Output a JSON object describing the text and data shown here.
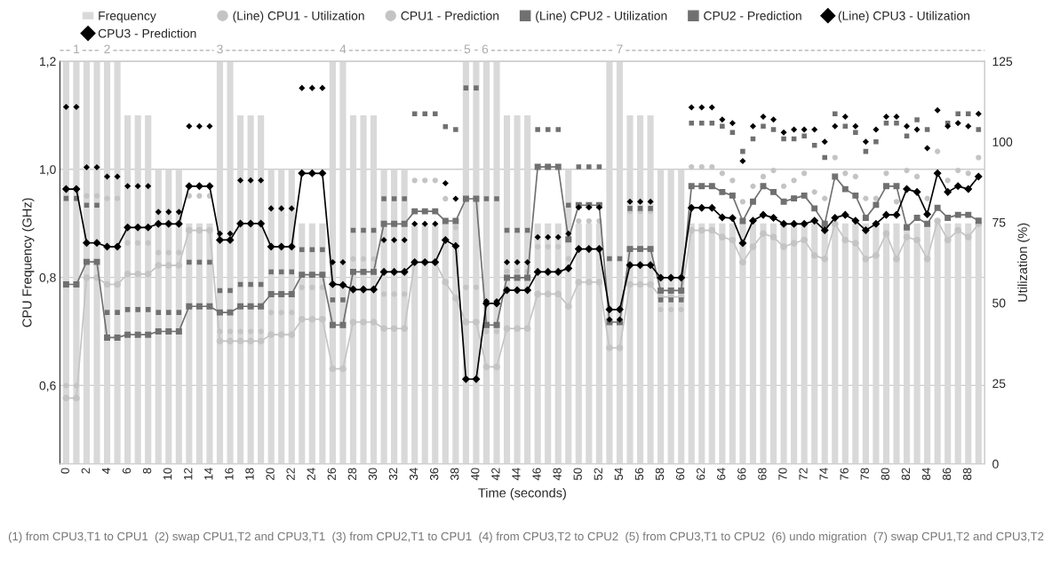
{
  "chart_data": {
    "type": "bar",
    "xlabel": "Time (seconds)",
    "ylabel": "CPU Frequency (GHz)",
    "y2label": "Utilization (%)",
    "x": [
      0,
      1,
      2,
      3,
      4,
      5,
      6,
      7,
      8,
      9,
      10,
      11,
      12,
      13,
      14,
      15,
      16,
      17,
      18,
      19,
      20,
      21,
      22,
      23,
      24,
      25,
      26,
      27,
      28,
      29,
      30,
      31,
      32,
      33,
      34,
      35,
      36,
      37,
      38,
      39,
      40,
      41,
      42,
      43,
      44,
      45,
      46,
      47,
      48,
      49,
      50,
      51,
      52,
      53,
      54,
      55,
      56,
      57,
      58,
      59,
      60,
      61,
      62,
      63,
      64,
      65,
      66,
      67,
      68,
      69,
      70,
      71,
      72,
      73,
      74,
      75,
      76,
      77,
      78,
      79,
      80,
      81,
      82,
      83,
      84,
      85,
      86,
      87,
      88,
      89
    ],
    "xlim": [
      -0.6,
      89.6
    ],
    "xticks": [
      0,
      2,
      4,
      6,
      8,
      10,
      12,
      14,
      16,
      18,
      20,
      22,
      24,
      26,
      28,
      30,
      32,
      34,
      36,
      38,
      40,
      42,
      44,
      46,
      48,
      50,
      52,
      54,
      56,
      58,
      60,
      62,
      64,
      66,
      68,
      70,
      72,
      74,
      76,
      78,
      80,
      82,
      84,
      86,
      88
    ],
    "ylim": [
      0.455,
      1.2
    ],
    "yticks": [
      {
        "value": 0.6,
        "label": "0,6"
      },
      {
        "value": 0.8,
        "label": "0,8"
      },
      {
        "value": 1.0,
        "label": "1,0"
      },
      {
        "value": 1.2,
        "label": "1,2"
      }
    ],
    "y2lim": [
      0,
      125
    ],
    "y2ticks": [
      0,
      25,
      50,
      75,
      100,
      125
    ],
    "grid": "y",
    "legend": "top",
    "series": [
      {
        "name": "Frequency",
        "axis": "y",
        "color": "#d9d9d9",
        "values": [
          1.2,
          1.2,
          1.2,
          1.2,
          1.2,
          1.2,
          1.1,
          1.1,
          1.1,
          1.0,
          1.0,
          1.0,
          0.9,
          0.9,
          0.9,
          1.2,
          1.2,
          1.1,
          1.1,
          1.1,
          1.0,
          1.0,
          1.0,
          0.9,
          0.9,
          0.9,
          1.2,
          1.2,
          1.1,
          1.1,
          1.1,
          1.0,
          1.0,
          1.0,
          0.9,
          0.9,
          0.9,
          0.9,
          0.9,
          1.2,
          1.2,
          1.2,
          1.2,
          1.1,
          1.1,
          1.1,
          0.9,
          0.9,
          0.9,
          1.0,
          0.9,
          0.9,
          0.9,
          1.2,
          1.2,
          1.1,
          1.1,
          1.1,
          1.0,
          1.0,
          1.0,
          0.9,
          0.9,
          0.9,
          0.9,
          0.9,
          0.9,
          0.9,
          0.9,
          0.9,
          0.9,
          0.9,
          0.9,
          0.9,
          0.9,
          0.9,
          0.9,
          0.9,
          0.9,
          0.9,
          0.9,
          0.9,
          0.9,
          0.9,
          0.9,
          0.9,
          0.9,
          0.9,
          0.9,
          0.9
        ]
      },
      {
        "name": "(Line) CPU1 - Utilization",
        "type": "line",
        "axis": "y2",
        "color": "#c4c4c4",
        "marker": "circle",
        "values": [
          20.4,
          20.4,
          57.8,
          57.8,
          55.7,
          55.7,
          58.9,
          58.9,
          58.9,
          61.6,
          61.6,
          61.6,
          72.5,
          72.5,
          72.5,
          38.1,
          38.1,
          38.1,
          38.1,
          38.1,
          40.1,
          40.1,
          40.1,
          44.9,
          44.9,
          44.9,
          29.5,
          29.5,
          44.0,
          44.0,
          44.0,
          42.0,
          42.0,
          42.0,
          62.6,
          62.6,
          62.6,
          56.4,
          51.4,
          44.0,
          44.0,
          30.1,
          30.1,
          42.0,
          42.0,
          42.0,
          52.7,
          52.7,
          52.7,
          48.9,
          56.4,
          56.4,
          56.4,
          36.0,
          36.0,
          55.7,
          55.7,
          55.7,
          51.8,
          51.8,
          51.8,
          72.5,
          72.5,
          72.5,
          70.4,
          69.5,
          62.6,
          67.4,
          71.5,
          70.4,
          67.4,
          68.5,
          69.5,
          64.7,
          63.6,
          74.5,
          69.5,
          68.5,
          63.6,
          64.7,
          71.5,
          63.6,
          70.4,
          69.5,
          63.6,
          75.4,
          69.5,
          72.5,
          70.4,
          74.5
        ]
      },
      {
        "name": "CPU1 - Prediction",
        "type": "scatter",
        "axis": "y2",
        "color": "#c4c4c4",
        "marker": "circle",
        "values": [
          24.3,
          24.3,
          83.2,
          83.2,
          82.4,
          82.4,
          68.6,
          68.6,
          68.6,
          65.6,
          65.6,
          65.6,
          83.2,
          83.2,
          83.2,
          41.1,
          41.1,
          41.1,
          41.1,
          41.1,
          47.0,
          47.0,
          47.0,
          54.8,
          54.8,
          54.8,
          null,
          null,
          63.6,
          63.6,
          63.6,
          52.7,
          52.7,
          52.7,
          88.0,
          88.0,
          88.0,
          82.3,
          73.4,
          54.8,
          54.8,
          41.1,
          41.1,
          59.8,
          59.8,
          59.8,
          67.4,
          67.4,
          67.4,
          63.7,
          75.4,
          75.4,
          75.4,
          null,
          null,
          78.4,
          78.4,
          78.4,
          47.9,
          47.9,
          47.9,
          92.2,
          92.2,
          92.2,
          90.2,
          88.0,
          81.4,
          86.2,
          89.2,
          91.1,
          86.2,
          88.0,
          90.2,
          84.4,
          82.4,
          95.1,
          90.2,
          89.2,
          82.4,
          82.4,
          90.2,
          81.4,
          91.1,
          89.2,
          82.4,
          97.0,
          88.0,
          91.1,
          90.2,
          95.1
        ]
      },
      {
        "name": "(Line) CPU2 - Utilization",
        "type": "line",
        "axis": "y2",
        "color": "#707070",
        "marker": "square",
        "values": [
          55.7,
          55.7,
          62.7,
          62.7,
          39.2,
          39.2,
          40.1,
          40.1,
          40.1,
          41.1,
          41.1,
          41.1,
          48.9,
          48.9,
          48.9,
          47.0,
          47.0,
          48.9,
          48.9,
          48.9,
          52.7,
          52.7,
          52.7,
          58.7,
          58.7,
          58.7,
          43.1,
          43.1,
          59.6,
          59.6,
          59.6,
          74.5,
          74.5,
          74.5,
          78.4,
          78.4,
          78.4,
          75.4,
          75.4,
          82.3,
          82.3,
          43.1,
          43.1,
          57.8,
          57.8,
          57.8,
          92.2,
          92.2,
          92.2,
          69.7,
          80.3,
          80.3,
          80.3,
          44.0,
          44.0,
          66.7,
          66.7,
          66.7,
          53.8,
          53.8,
          53.8,
          86.2,
          86.2,
          86.2,
          84.4,
          83.3,
          75.4,
          81.4,
          86.2,
          84.4,
          81.4,
          82.4,
          83.3,
          79.3,
          74.5,
          89.2,
          85.3,
          83.3,
          76.4,
          80.4,
          86.2,
          86.2,
          73.4,
          76.4,
          74.5,
          79.5,
          76.4,
          77.3,
          77.3,
          75.5
        ]
      },
      {
        "name": "CPU2 - Prediction",
        "type": "scatter",
        "axis": "y2",
        "color": "#707070",
        "marker": "square",
        "values": [
          82.4,
          82.4,
          80.3,
          80.3,
          47.0,
          47.0,
          47.9,
          47.9,
          47.9,
          47.0,
          47.0,
          47.0,
          62.6,
          62.6,
          62.6,
          53.8,
          53.8,
          55.7,
          55.7,
          55.7,
          59.6,
          59.6,
          59.6,
          66.5,
          66.5,
          66.5,
          50.9,
          50.9,
          72.5,
          72.5,
          72.5,
          82.3,
          82.3,
          82.3,
          108.7,
          108.7,
          108.7,
          104.7,
          103.8,
          116.7,
          116.7,
          82.3,
          82.3,
          72.5,
          72.5,
          72.5,
          103.8,
          103.8,
          103.8,
          80.3,
          92.2,
          92.2,
          92.2,
          63.7,
          63.7,
          79.3,
          79.3,
          79.3,
          50.9,
          50.9,
          50.9,
          105.8,
          105.8,
          105.8,
          104.8,
          102.9,
          97.0,
          100.9,
          104.8,
          103.8,
          100.9,
          100.9,
          101.8,
          98.9,
          95.1,
          108.7,
          104.8,
          102.9,
          97.0,
          100.0,
          105.8,
          105.8,
          101.8,
          106.8,
          103.8,
          null,
          105.8,
          108.7,
          108.7,
          103.8
        ]
      },
      {
        "name": "(Line) CPU3 - Utilization",
        "type": "line",
        "axis": "y2",
        "color": "#000000",
        "marker": "diamond",
        "values": [
          85.3,
          85.3,
          68.6,
          68.6,
          67.4,
          67.4,
          73.4,
          73.4,
          73.4,
          74.5,
          74.5,
          74.5,
          86.2,
          86.2,
          86.2,
          69.5,
          69.5,
          74.6,
          74.6,
          74.6,
          67.4,
          67.4,
          67.4,
          90.2,
          90.2,
          90.2,
          55.8,
          55.5,
          54.1,
          54.1,
          54.1,
          59.6,
          59.6,
          59.6,
          62.6,
          62.6,
          62.6,
          69.5,
          67.6,
          26.3,
          26.3,
          49.8,
          49.8,
          53.9,
          53.9,
          53.9,
          59.6,
          59.6,
          59.6,
          60.7,
          66.7,
          66.7,
          66.7,
          47.9,
          47.9,
          61.7,
          61.7,
          61.7,
          57.8,
          57.8,
          57.8,
          79.5,
          79.5,
          79.5,
          76.5,
          76.3,
          68.5,
          75.5,
          77.3,
          76.4,
          74.5,
          74.5,
          74.5,
          75.5,
          72.5,
          76.4,
          77.3,
          75.5,
          72.5,
          74.5,
          77.3,
          77.3,
          85.3,
          84.4,
          77.5,
          90.2,
          84.4,
          86.2,
          85.3,
          89.2
        ]
      },
      {
        "name": "CPU3 - Prediction",
        "type": "scatter",
        "axis": "y2",
        "color": "#000000",
        "marker": "diamond",
        "values": [
          110.8,
          110.8,
          92.1,
          92.1,
          89.2,
          89.2,
          86.2,
          86.2,
          86.2,
          78.2,
          78.2,
          78.2,
          104.8,
          104.8,
          104.8,
          71.5,
          71.5,
          88.0,
          88.0,
          88.0,
          79.3,
          79.3,
          79.3,
          116.7,
          116.7,
          116.7,
          62.6,
          62.6,
          54.4,
          54.4,
          54.4,
          69.5,
          69.5,
          69.5,
          74.5,
          74.5,
          74.5,
          87.1,
          82.3,
          null,
          null,
          50.5,
          50.5,
          62.6,
          62.6,
          62.6,
          70.4,
          70.4,
          70.4,
          71.5,
          79.6,
          79.6,
          79.6,
          44.8,
          44.8,
          81.4,
          81.4,
          81.4,
          null,
          null,
          null,
          110.7,
          110.7,
          110.7,
          106.9,
          105.8,
          94.0,
          104.8,
          107.8,
          106.9,
          102.9,
          103.8,
          103.8,
          103.8,
          100.0,
          104.8,
          107.8,
          104.8,
          100.0,
          103.8,
          107.8,
          107.8,
          104.8,
          103.8,
          98.0,
          109.8,
          104.8,
          105.8,
          104.8,
          108.7
        ]
      }
    ],
    "annotations": [
      {
        "text": "1",
        "x": 1,
        "y": 1.2
      },
      {
        "text": "2",
        "x": 4,
        "y": 1.2
      },
      {
        "text": "3",
        "x": 15,
        "y": 1.2
      },
      {
        "text": "4",
        "x": 27,
        "y": 1.2
      },
      {
        "text": "5 - 6",
        "x": 40,
        "y": 1.2
      },
      {
        "text": "7",
        "x": 54,
        "y": 1.2
      },
      "(1) from CPU3,T1 to CPU1  (2) swap CPU1,T2 and CPU3,T1  (3) from CPU2,T1 to CPU1  (4) from CPU3,T2 to CPU2  (5) from CPU3,T1 to CPU2  (6) undo migration  (7) swap CPU1,T2 and CPU3,T2"
    ]
  }
}
